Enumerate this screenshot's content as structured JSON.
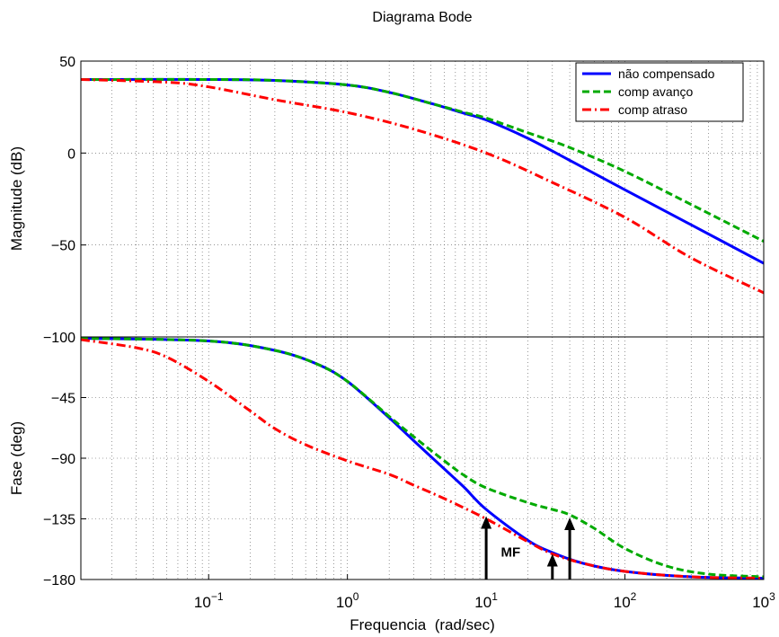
{
  "figure": {
    "title": "Diagrama Bode",
    "xlabel": "Frequencia  (rad/sec)"
  },
  "chart_data": [
    {
      "type": "line",
      "title": "Diagrama Bode",
      "ylabel": "Magnitude (dB)",
      "xscale": "log",
      "xlim": [
        0.012,
        1000
      ],
      "ylim": [
        -100,
        50
      ],
      "yticks": [
        -100,
        -50,
        0,
        50
      ],
      "grid": true,
      "legend_position": "top-right",
      "series": [
        {
          "name": "não compensado",
          "color": "#0000ff",
          "style": "solid",
          "x": [
            0.012,
            0.1,
            0.3,
            1,
            2,
            4,
            7,
            10,
            20,
            40,
            100,
            300,
            1000
          ],
          "y": [
            40,
            40,
            39.5,
            37,
            33,
            27,
            21.5,
            18,
            8,
            -4,
            -20,
            -39,
            -60
          ]
        },
        {
          "name": "comp avanço",
          "color": "#00aa00",
          "style": "dashed",
          "x": [
            0.012,
            0.1,
            0.3,
            1,
            2,
            4,
            7,
            10,
            20,
            40,
            100,
            300,
            1000
          ],
          "y": [
            40,
            40,
            39.5,
            37,
            33,
            27,
            22,
            19,
            11,
            3,
            -10,
            -28,
            -48
          ]
        },
        {
          "name": "comp atraso",
          "color": "#ff0000",
          "style": "dashdot",
          "x": [
            0.012,
            0.05,
            0.1,
            0.3,
            1,
            3,
            10,
            30,
            100,
            300,
            1000
          ],
          "y": [
            40,
            38.5,
            36,
            29,
            22,
            13,
            0,
            -16,
            -35,
            -57,
            -76
          ]
        }
      ]
    },
    {
      "type": "line",
      "ylabel": "Fase (deg)",
      "xlabel": "Frequencia  (rad/sec)",
      "xscale": "log",
      "xlim": [
        0.012,
        1000
      ],
      "ylim": [
        -180,
        0
      ],
      "xtick_labels": [
        "10^-1",
        "10^0",
        "10^1",
        "10^2",
        "10^3"
      ],
      "yticks": [
        -180,
        -135,
        -90,
        -45
      ],
      "grid": true,
      "series": [
        {
          "name": "não compensado",
          "color": "#0000ff",
          "style": "solid",
          "x": [
            0.012,
            0.1,
            0.3,
            0.6,
            1,
            2,
            3,
            5,
            7,
            10,
            20,
            30,
            50,
            100,
            300,
            1000
          ],
          "y": [
            -1,
            -3,
            -10,
            -20,
            -33,
            -60,
            -77,
            -98,
            -112,
            -128,
            -151,
            -160,
            -168,
            -174,
            -178,
            -179
          ]
        },
        {
          "name": "comp avanço",
          "color": "#00aa00",
          "style": "dashed",
          "x": [
            0.012,
            0.1,
            0.3,
            0.6,
            1,
            2,
            3,
            5,
            7,
            10,
            20,
            30,
            40,
            60,
            100,
            200,
            400,
            1000
          ],
          "y": [
            -1,
            -3,
            -10,
            -20,
            -33,
            -59,
            -74,
            -92,
            -103,
            -112,
            -123,
            -128,
            -132,
            -142,
            -157,
            -170,
            -176,
            -178
          ]
        },
        {
          "name": "comp atraso",
          "color": "#ff0000",
          "style": "dashdot",
          "x": [
            0.012,
            0.03,
            0.05,
            0.1,
            0.2,
            0.3,
            0.5,
            1,
            2,
            3,
            5,
            10,
            20,
            30,
            50,
            100,
            300,
            1000
          ],
          "y": [
            -2,
            -8,
            -15,
            -33,
            -55,
            -68,
            -80,
            -92,
            -102,
            -110,
            -120,
            -135,
            -152,
            -161,
            -168,
            -174,
            -178,
            -179
          ]
        }
      ],
      "annotations": [
        {
          "type": "arrow",
          "x": 10,
          "y_from": -180,
          "y_to": -133,
          "color": "#000000"
        },
        {
          "type": "arrow",
          "x": 30,
          "y_from": -180,
          "y_to": -161,
          "color": "#000000"
        },
        {
          "type": "arrow",
          "x": 40,
          "y_from": -180,
          "y_to": -134,
          "color": "#000000"
        },
        {
          "type": "text",
          "text": "MF",
          "x": 15,
          "y": -163
        }
      ]
    }
  ]
}
